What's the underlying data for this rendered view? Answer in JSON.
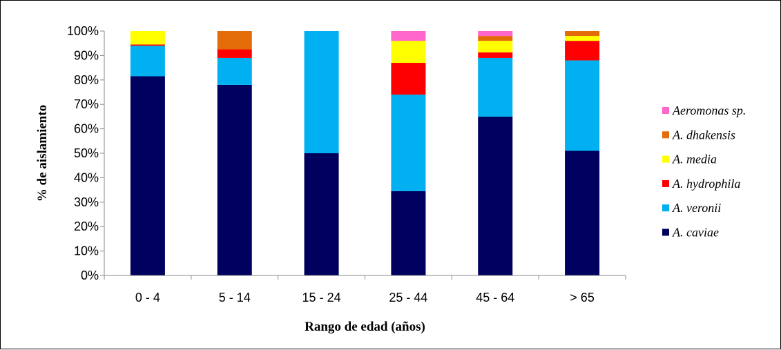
{
  "chart_data": {
    "type": "bar",
    "stacked": true,
    "percent_stacked": true,
    "categories": [
      "0 - 4",
      "5 - 14",
      "15 - 24",
      "25 - 44",
      "45 - 64",
      "> 65"
    ],
    "series": [
      {
        "name": "A. caviae",
        "color": "#00005E",
        "values": [
          81.5,
          78,
          50,
          34.5,
          65,
          51
        ]
      },
      {
        "name": "A. veronii",
        "color": "#00B0F0",
        "values": [
          12.5,
          11,
          50,
          39.5,
          24,
          37
        ]
      },
      {
        "name": "A. hydrophila",
        "color": "#FF0000",
        "values": [
          0.5,
          3.5,
          0,
          13,
          2.3,
          8
        ]
      },
      {
        "name": "A. media",
        "color": "#FFFF00",
        "values": [
          5.5,
          0,
          0,
          9,
          4.7,
          2
        ]
      },
      {
        "name": "A. dhakensis",
        "color": "#E36C09",
        "values": [
          0,
          7.5,
          0,
          0,
          2,
          2
        ]
      },
      {
        "name": "Aeromonas sp.",
        "color": "#FF66CC",
        "values": [
          0,
          0,
          0,
          4,
          2,
          0
        ]
      }
    ],
    "title": "",
    "xlabel": "Rango de edad (años)",
    "ylabel": "% de aislamiento",
    "ylim": [
      0,
      100
    ],
    "yticks": [
      "0%",
      "10%",
      "20%",
      "30%",
      "40%",
      "50%",
      "60%",
      "70%",
      "80%",
      "90%",
      "100%"
    ],
    "grid": false,
    "legend_position": "right"
  }
}
